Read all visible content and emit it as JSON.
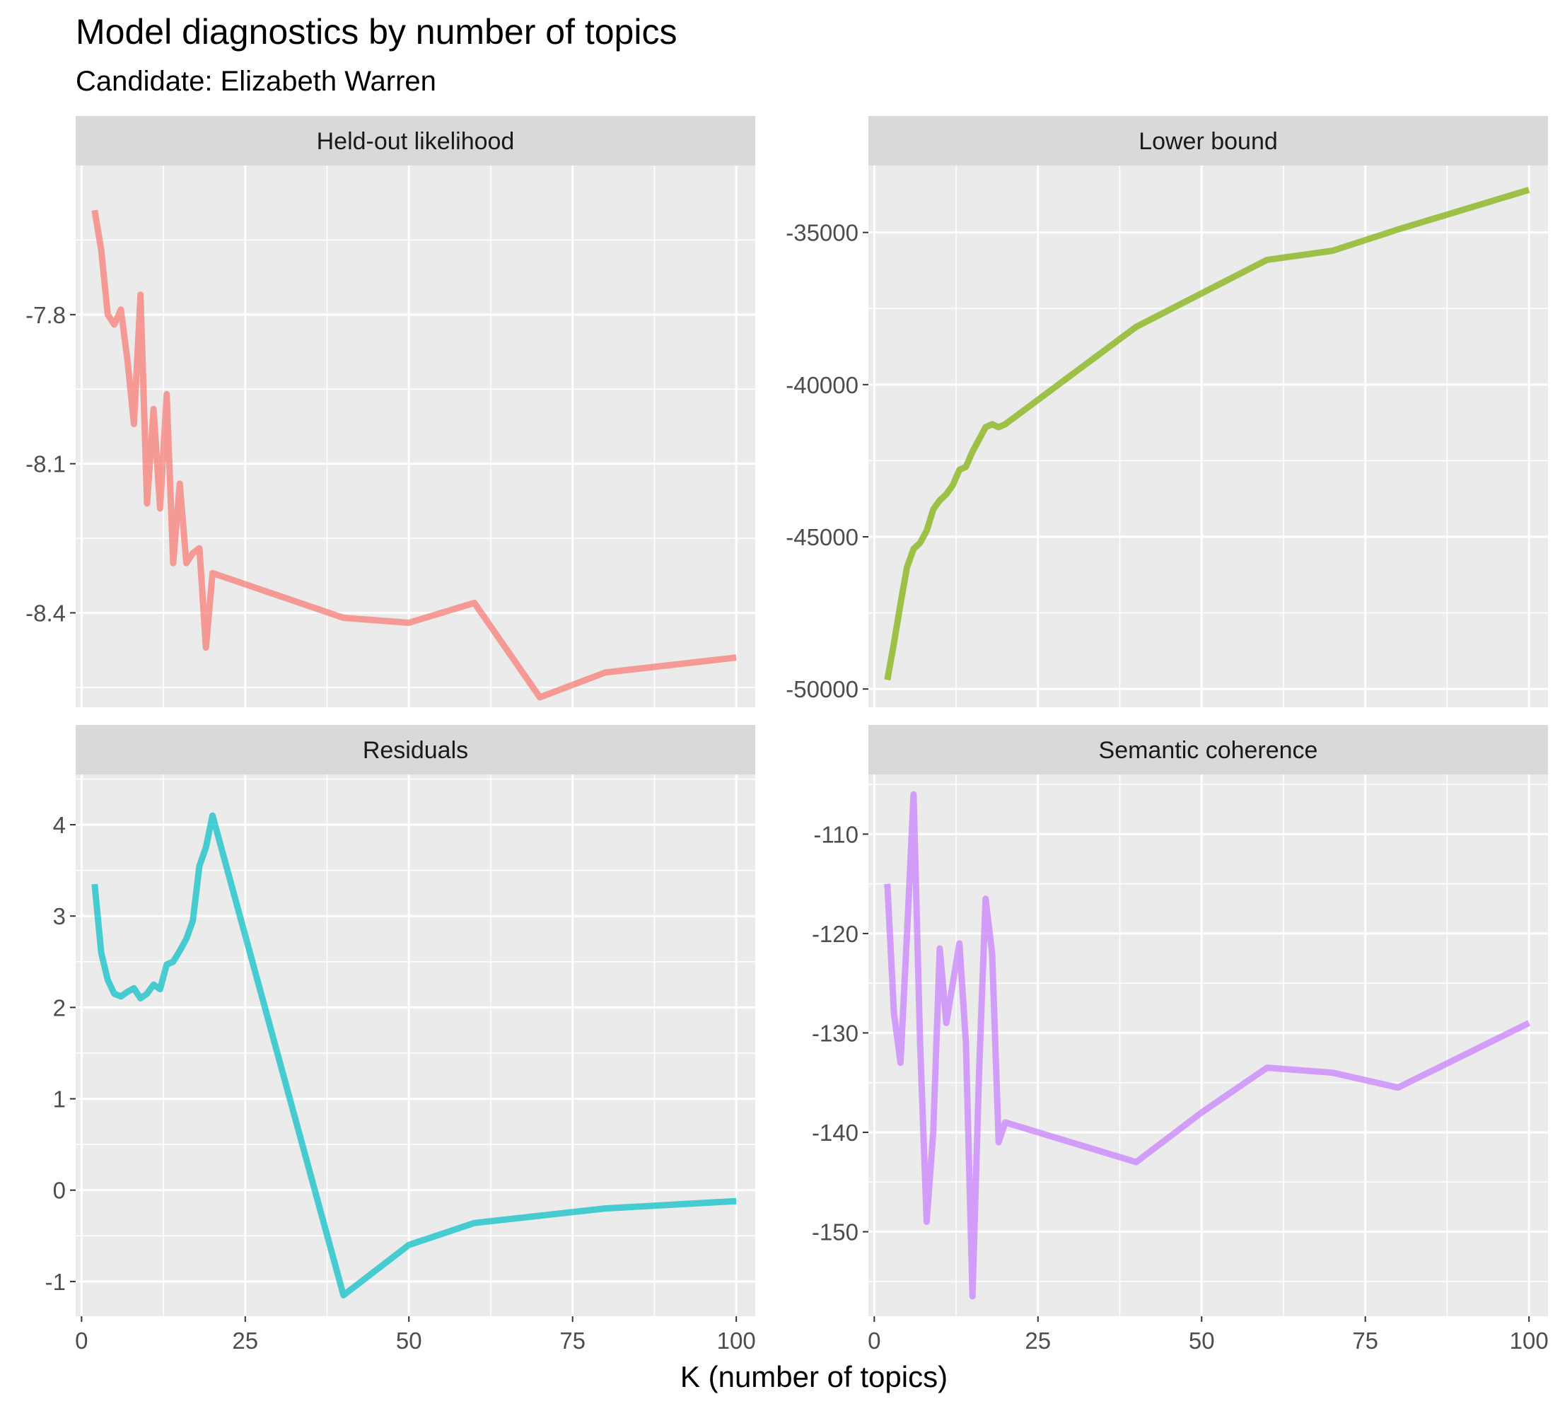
{
  "chart_data": {
    "type": "line",
    "title": "Model diagnostics by number of topics",
    "subtitle": "Candidate: Elizabeth Warren",
    "xlabel": "K (number of topics)",
    "ylabel": "",
    "grid": true,
    "legend": "none",
    "x_ticks": [
      0,
      25,
      50,
      75,
      100
    ],
    "xlim": [
      -0.9,
      102.9
    ],
    "panels": [
      {
        "name": "Held-out likelihood",
        "color": "#F8766D",
        "ylim": [
          -8.59,
          -7.5
        ],
        "y_ticks": [
          -7.8,
          -8.1,
          -8.4
        ],
        "y_tick_labels": [
          "-7.8",
          "-8.1",
          "-8.4"
        ],
        "x": [
          2,
          3,
          4,
          5,
          6,
          7,
          8,
          9,
          10,
          11,
          12,
          13,
          14,
          15,
          16,
          17,
          18,
          19,
          20,
          40,
          50,
          60,
          70,
          80,
          100
        ],
        "values": [
          -7.59,
          -7.67,
          -7.8,
          -7.82,
          -7.79,
          -7.89,
          -8.02,
          -7.76,
          -8.18,
          -7.99,
          -8.19,
          -7.96,
          -8.3,
          -8.14,
          -8.3,
          -8.28,
          -8.27,
          -8.47,
          -8.32,
          -8.41,
          -8.42,
          -8.38,
          -8.57,
          -8.52,
          -8.49
        ]
      },
      {
        "name": "Lower bound",
        "color": "#7CAE00",
        "ylim": [
          -50600,
          -32800
        ],
        "y_ticks": [
          -35000,
          -40000,
          -45000,
          -50000
        ],
        "y_tick_labels": [
          "-35000",
          "-40000",
          "-45000",
          "-50000"
        ],
        "x": [
          2,
          3,
          4,
          5,
          6,
          7,
          8,
          9,
          10,
          11,
          12,
          13,
          14,
          15,
          16,
          17,
          18,
          19,
          20,
          30,
          40,
          50,
          60,
          70,
          80,
          100
        ],
        "values": [
          -49700,
          -48500,
          -47200,
          -46000,
          -45400,
          -45200,
          -44800,
          -44100,
          -43800,
          -43600,
          -43300,
          -42800,
          -42700,
          -42200,
          -41800,
          -41400,
          -41300,
          -41400,
          -41300,
          -39700,
          -38100,
          -37000,
          -35900,
          -35600,
          -34900,
          -33600
        ]
      },
      {
        "name": "Residuals",
        "color": "#00BFC4",
        "ylim": [
          -1.38,
          4.55
        ],
        "y_ticks": [
          4,
          3,
          2,
          1,
          0,
          -1
        ],
        "y_tick_labels": [
          "4",
          "3",
          "2",
          "1",
          "0",
          "-1"
        ],
        "x": [
          2,
          3,
          4,
          5,
          6,
          7,
          8,
          9,
          10,
          11,
          12,
          13,
          14,
          15,
          16,
          17,
          18,
          19,
          20,
          40,
          50,
          60,
          70,
          80,
          100
        ],
        "values": [
          3.35,
          2.6,
          2.3,
          2.15,
          2.12,
          2.17,
          2.21,
          2.1,
          2.15,
          2.25,
          2.2,
          2.47,
          2.5,
          2.62,
          2.75,
          2.95,
          3.55,
          3.75,
          4.1,
          -1.15,
          -0.6,
          -0.36,
          -0.28,
          -0.2,
          -0.12
        ]
      },
      {
        "name": "Semantic coherence",
        "color": "#C77CFF",
        "ylim": [
          -158.5,
          -104
        ],
        "y_ticks": [
          -110,
          -120,
          -130,
          -140,
          -150
        ],
        "y_tick_labels": [
          "-110",
          "-120",
          "-130",
          "-140",
          "-150"
        ],
        "x": [
          2,
          3,
          4,
          5,
          6,
          7,
          8,
          9,
          10,
          11,
          12,
          13,
          14,
          15,
          16,
          17,
          18,
          19,
          20,
          40,
          50,
          60,
          70,
          80,
          100
        ],
        "values": [
          -115,
          -128,
          -133,
          -120,
          -106,
          -131,
          -149,
          -140,
          -121.5,
          -129,
          -125,
          -121,
          -131,
          -156.5,
          -134,
          -116.5,
          -122,
          -141,
          -139,
          -143,
          -138,
          -133.5,
          -134,
          -135.5,
          -129
        ]
      }
    ]
  }
}
